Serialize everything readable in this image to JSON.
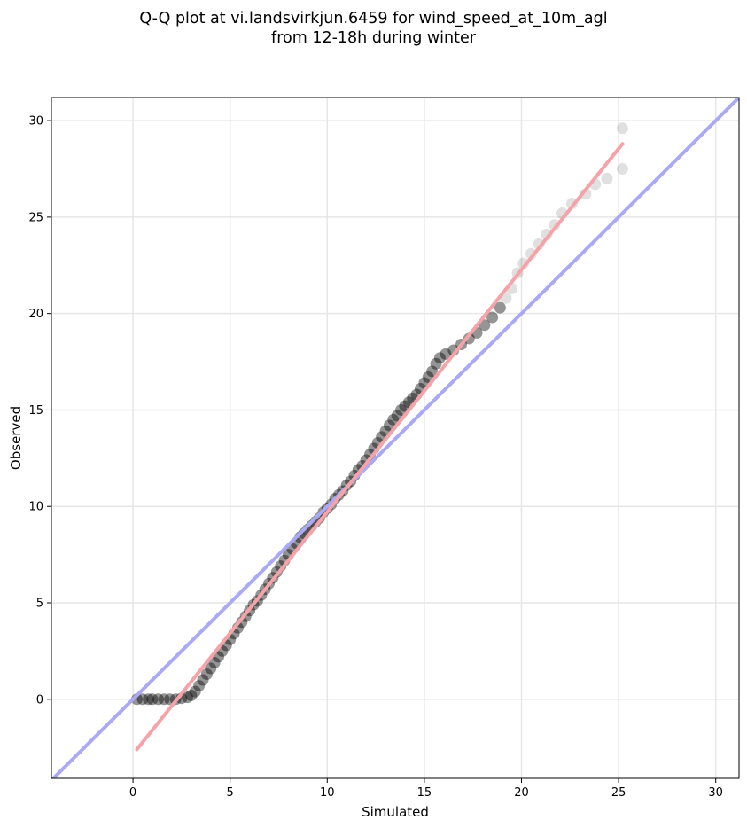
{
  "chart_data": {
    "type": "scatter",
    "title": "Q-Q plot at vi.landsvirkjun.6459 for wind_speed_at_10m_agl",
    "subtitle": "from 12-18h during winter",
    "xlabel": "Simulated",
    "ylabel": "Observed",
    "xlim": [
      -4.2,
      31.2
    ],
    "ylim": [
      -4.1,
      31.2
    ],
    "xticks": [
      0,
      5,
      10,
      15,
      20,
      25,
      30
    ],
    "yticks": [
      0,
      5,
      10,
      15,
      20,
      25,
      30
    ],
    "grid": true,
    "colors": {
      "points": "#000000",
      "identity_line": "#a9a9f5",
      "fit_line": "#f5a3a8",
      "grid": "#e6e6e6"
    },
    "reference_lines": [
      {
        "kind": "identity",
        "x": [
          -4.2,
          31.2
        ],
        "y": [
          -4.2,
          31.2
        ]
      },
      {
        "kind": "fit",
        "x": [
          0.2,
          25.2
        ],
        "y": [
          -2.6,
          28.8
        ]
      }
    ],
    "points": [
      [
        0.2,
        0.0
      ],
      [
        0.5,
        0.0
      ],
      [
        0.8,
        0.0
      ],
      [
        1.0,
        0.0
      ],
      [
        1.3,
        0.0
      ],
      [
        1.6,
        0.0
      ],
      [
        1.9,
        0.0
      ],
      [
        2.2,
        0.0
      ],
      [
        2.5,
        0.05
      ],
      [
        2.8,
        0.1
      ],
      [
        3.0,
        0.2
      ],
      [
        3.2,
        0.4
      ],
      [
        3.4,
        0.7
      ],
      [
        3.6,
        1.0
      ],
      [
        3.8,
        1.3
      ],
      [
        4.0,
        1.6
      ],
      [
        4.2,
        1.9
      ],
      [
        4.4,
        2.2
      ],
      [
        4.6,
        2.5
      ],
      [
        4.8,
        2.8
      ],
      [
        5.0,
        3.1
      ],
      [
        5.2,
        3.4
      ],
      [
        5.4,
        3.7
      ],
      [
        5.6,
        4.0
      ],
      [
        5.8,
        4.3
      ],
      [
        6.0,
        4.6
      ],
      [
        6.2,
        4.9
      ],
      [
        6.4,
        5.1
      ],
      [
        6.6,
        5.4
      ],
      [
        6.8,
        5.7
      ],
      [
        7.0,
        6.0
      ],
      [
        7.2,
        6.3
      ],
      [
        7.4,
        6.6
      ],
      [
        7.6,
        6.9
      ],
      [
        7.8,
        7.2
      ],
      [
        8.0,
        7.5
      ],
      [
        8.2,
        7.8
      ],
      [
        8.4,
        8.1
      ],
      [
        8.6,
        8.4
      ],
      [
        8.8,
        8.6
      ],
      [
        9.0,
        8.8
      ],
      [
        9.2,
        9.0
      ],
      [
        9.4,
        9.2
      ],
      [
        9.6,
        9.4
      ],
      [
        9.8,
        9.7
      ],
      [
        10.0,
        9.9
      ],
      [
        10.2,
        10.1
      ],
      [
        10.4,
        10.4
      ],
      [
        10.6,
        10.6
      ],
      [
        10.8,
        10.8
      ],
      [
        11.0,
        11.1
      ],
      [
        11.2,
        11.3
      ],
      [
        11.4,
        11.6
      ],
      [
        11.6,
        11.9
      ],
      [
        11.8,
        12.1
      ],
      [
        12.0,
        12.4
      ],
      [
        12.2,
        12.7
      ],
      [
        12.4,
        13.0
      ],
      [
        12.6,
        13.3
      ],
      [
        12.8,
        13.6
      ],
      [
        13.0,
        13.9
      ],
      [
        13.2,
        14.2
      ],
      [
        13.4,
        14.5
      ],
      [
        13.6,
        14.7
      ],
      [
        13.8,
        15.0
      ],
      [
        14.0,
        15.2
      ],
      [
        14.2,
        15.4
      ],
      [
        14.4,
        15.6
      ],
      [
        14.6,
        15.8
      ],
      [
        14.8,
        16.1
      ],
      [
        15.0,
        16.4
      ],
      [
        15.2,
        16.7
      ],
      [
        15.4,
        17.0
      ],
      [
        15.6,
        17.4
      ],
      [
        15.8,
        17.7
      ],
      [
        16.1,
        17.9
      ],
      [
        16.5,
        18.1
      ],
      [
        16.9,
        18.4
      ],
      [
        17.3,
        18.7
      ],
      [
        17.7,
        19.0
      ],
      [
        18.1,
        19.4
      ],
      [
        18.5,
        19.8
      ],
      [
        18.9,
        20.3
      ],
      [
        19.2,
        20.8
      ],
      [
        19.5,
        21.3
      ],
      [
        19.8,
        22.1
      ],
      [
        20.1,
        22.6
      ],
      [
        20.5,
        23.1
      ],
      [
        20.9,
        23.6
      ],
      [
        21.3,
        24.1
      ],
      [
        21.7,
        24.6
      ],
      [
        22.1,
        25.2
      ],
      [
        22.6,
        25.7
      ],
      [
        23.3,
        26.2
      ],
      [
        23.8,
        26.7
      ],
      [
        24.4,
        27.0
      ],
      [
        25.2,
        27.5
      ],
      [
        25.2,
        29.6
      ]
    ]
  }
}
